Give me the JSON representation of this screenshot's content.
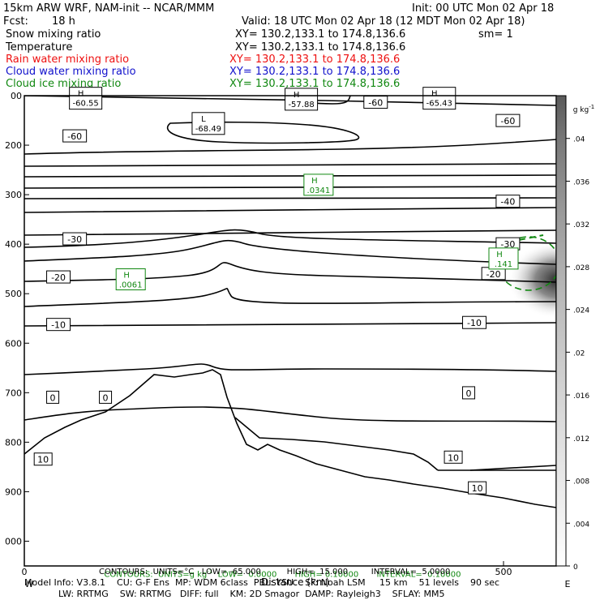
{
  "header": {
    "model_line": "15km ARW WRF, NAM-init -- NCAR/MMM",
    "init_line": "Init: 00 UTC Mon 02 Apr 18",
    "fcst_label": "Fcst:",
    "fcst_value": "18 h",
    "valid_line": "Valid: 18 UTC Mon 02 Apr 18 (12 MDT Mon 02 Apr 18)",
    "fields": [
      {
        "name": "Snow mixing ratio",
        "xy": "XY= 130.2,133.1 to 174.8,136.6",
        "extra": "sm= 1",
        "color": "#000000"
      },
      {
        "name": "Temperature",
        "xy": "XY= 130.2,133.1 to 174.8,136.6",
        "extra": "",
        "color": "#000000"
      },
      {
        "name": "Rain water mixing ratio",
        "xy": "XY= 130.2,133.1 to 174.8,136.6",
        "extra": "",
        "color": "#ee1111"
      },
      {
        "name": "Cloud water mixing ratio",
        "xy": "XY= 130.2,133.1 to 174.8,136.6",
        "extra": "",
        "color": "#1111cc"
      },
      {
        "name": "Cloud ice mixing ratio",
        "xy": "XY= 130.2,133.1 to 174.8,136.6",
        "extra": "",
        "color": "#118811"
      }
    ]
  },
  "chart_data": {
    "type": "cross-section contour",
    "y_axis": {
      "ticks": [
        {
          "label": "00",
          "p": 100
        },
        {
          "label": "200",
          "p": 200
        },
        {
          "label": "300",
          "p": 300
        },
        {
          "label": "400",
          "p": 400
        },
        {
          "label": "500",
          "p": 500
        },
        {
          "label": "600",
          "p": 600
        },
        {
          "label": "700",
          "p": 700
        },
        {
          "label": "800",
          "p": 800
        },
        {
          "label": "900",
          "p": 900
        },
        {
          "label": "000",
          "p": 1000
        }
      ],
      "range": [
        100,
        1050
      ]
    },
    "x_axis": {
      "label": "Distance (km)",
      "ticks": [
        {
          "label": "0",
          "x": 0
        },
        {
          "label": "500",
          "x": 500
        }
      ],
      "range": [
        0,
        555
      ],
      "end_labels": [
        "W",
        "E"
      ]
    },
    "colorbar": {
      "unit": "g kg",
      "unit_exp": "-1",
      "ticks": [
        ".04",
        ".036",
        ".032",
        ".028",
        ".024",
        ".02",
        ".016",
        ".012",
        ".008",
        ".004",
        "0"
      ],
      "range": [
        0,
        0.044
      ]
    },
    "temperature_labels": [
      {
        "text": "-60",
        "x": 42,
        "p": 182
      },
      {
        "text": "-60",
        "x": 356,
        "p": 114
      },
      {
        "text": "-60",
        "x": 494,
        "p": 151
      },
      {
        "text": "-40",
        "x": 494,
        "p": 314
      },
      {
        "text": "-30",
        "x": 42,
        "p": 390
      },
      {
        "text": "-30",
        "x": 494,
        "p": 400
      },
      {
        "text": "-20",
        "x": 25,
        "p": 467
      },
      {
        "text": "-20",
        "x": 479,
        "p": 460
      },
      {
        "text": "-10",
        "x": 25,
        "p": 563
      },
      {
        "text": "-10",
        "x": 459,
        "p": 559
      },
      {
        "text": "0",
        "x": 25,
        "p": 710
      },
      {
        "text": "0",
        "x": 80,
        "p": 710
      },
      {
        "text": "0",
        "x": 459,
        "p": 701
      },
      {
        "text": "10",
        "x": 12,
        "p": 835
      },
      {
        "text": "10",
        "x": 440,
        "p": 831
      },
      {
        "text": "10",
        "x": 465,
        "p": 893
      }
    ],
    "temperature_extrema": [
      {
        "kind": "H",
        "value": "-60.55",
        "x": 64,
        "p": 106
      },
      {
        "kind": "H",
        "value": "-57.88",
        "x": 289,
        "p": 108
      },
      {
        "kind": "H",
        "value": "-65.43",
        "x": 433,
        "p": 106
      },
      {
        "kind": "L",
        "value": "-68.49",
        "x": 192,
        "p": 157
      }
    ],
    "ice_extrema": [
      {
        "kind": "H",
        "value": ".0341",
        "x": 307,
        "p": 280
      },
      {
        "kind": "H",
        "value": ".0061",
        "x": 111,
        "p": 471
      },
      {
        "kind": "H",
        "value": ".141",
        "x": 500,
        "p": 429
      }
    ],
    "contour_info": "CONTOURS: UNITS=g kg-1  LOW= 0.0000  HIGH= 0.10000  INTERVAL= 0.10000",
    "contour_info_units": "CONTOURS:  UNITS=",
    "contour_info_unit_base": "g kg",
    "contour_info_unit_exp": "-1",
    "contour_info_rest": "LOW=  0.0000       HIGH= 0.10000       INTERVAL=  0.10000",
    "temp_contour_info": "CONTOURS:  UNITS=°C   LOW= -65.000          HIGH=  15.000         INTERVAL=  5.0000"
  },
  "footer": {
    "line1": "Model Info: V3.8.1    CU: G-F Ens  MP: WDM 6class  PBL: YSU    SF: Noah LSM     15 km    51 levels    90 sec",
    "line2": "LW: RRTMG    SW: RRTMG   DIFF: full    KM: 2D Smagor  DAMP: Rayleigh3    SFLAY: MM5"
  }
}
